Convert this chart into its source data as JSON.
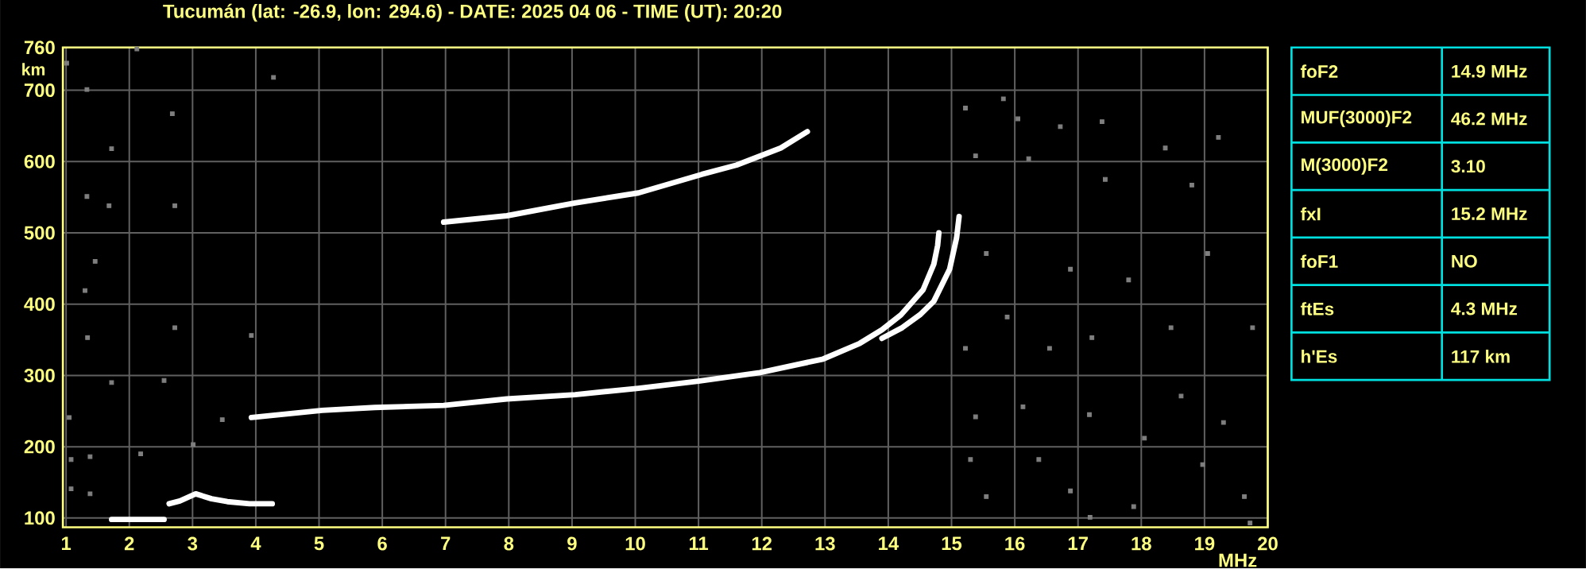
{
  "chart_data": [
    {
      "type": "line",
      "title": "Tucumán (lat: -26.9, lon: 294.6) - DATE: 2025 04 06 - TIME (UT): 20:20",
      "xlabel": "MHz",
      "ylabel": "km",
      "xlim": [
        0.95,
        20
      ],
      "ylim": [
        87,
        760
      ],
      "xticks": [
        1,
        2,
        3,
        4,
        5,
        6,
        7,
        8,
        9,
        10,
        11,
        12,
        13,
        14,
        15,
        16,
        17,
        18,
        19,
        20
      ],
      "yticks": [
        100,
        200,
        300,
        400,
        500,
        600,
        700,
        760
      ],
      "grid": true,
      "series": [
        {
          "color": "#ffffff",
          "x": [
            1.72,
            2.55
          ],
          "values": [
            98,
            98
          ]
        },
        {
          "color": "#ffffff",
          "x": [
            2.63,
            2.8,
            3.05,
            3.3,
            3.55,
            3.9,
            4.26
          ],
          "values": [
            120,
            124,
            134,
            127,
            123,
            120,
            120
          ]
        },
        {
          "color": "#ffffff",
          "x": [
            3.93,
            5.05,
            5.88,
            6.97,
            7.97,
            9.05,
            10.05,
            11.0,
            11.97,
            12.97,
            13.55,
            13.9,
            14.2,
            14.55,
            14.72,
            14.78,
            14.8
          ],
          "values": [
            241,
            251,
            255,
            258,
            267,
            273,
            282,
            292,
            304,
            323,
            345,
            364,
            385,
            420,
            456,
            482,
            500
          ]
        },
        {
          "color": "#ffffff",
          "x": [
            13.9,
            14.22,
            14.5,
            14.72,
            14.97,
            15.08,
            15.12
          ],
          "values": [
            352,
            367,
            385,
            404,
            449,
            493,
            523
          ]
        },
        {
          "color": "#ffffff",
          "x": [
            6.97,
            7.97,
            9.05,
            10.05,
            11.05,
            11.6,
            12.3,
            12.72
          ],
          "values": [
            515,
            524,
            542,
            556,
            582,
            595,
            619,
            642
          ]
        },
        {
          "type": "scatter",
          "marker": "square",
          "color": "#7f7f7f",
          "x": [
            15.22,
            16.05,
            16.72,
            17.38,
            18.38,
            19.22,
            15.38,
            16.22,
            17.43,
            18.8,
            15.55,
            16.88,
            17.8,
            19.05,
            15.88,
            17.22,
            18.47,
            19.76,
            15.22,
            16.55,
            15.38,
            16.13,
            17.18,
            18.63,
            19.3,
            15.3,
            16.38,
            18.05,
            18.97,
            15.55,
            16.88,
            17.88,
            19.63,
            19.72,
            17.19,
            15.82,
            1.01,
            1.33,
            2.12,
            2.68,
            1.72,
            1.33,
            1.68,
            2.72,
            4.28,
            1.46,
            1.3,
            1.34,
            2.72,
            2.55,
            1.72,
            1.05,
            1.08,
            2.18,
            1.38,
            3.93,
            3.47,
            3.01,
            1.08,
            1.38
          ],
          "values": [
            675,
            660,
            649,
            656,
            619,
            634,
            608,
            604,
            575,
            567,
            471,
            449,
            434,
            471,
            382,
            353,
            367,
            367,
            338,
            338,
            242,
            256,
            245,
            271,
            234,
            182,
            182,
            212,
            175,
            130,
            138,
            116,
            130,
            93,
            101,
            688,
            738,
            701,
            758,
            667,
            618,
            551,
            538,
            538,
            718,
            460,
            419,
            353,
            367,
            293,
            290,
            241,
            182,
            190,
            186,
            356,
            238,
            203,
            141,
            134
          ]
        }
      ]
    },
    {
      "type": "other",
      "categories": [
        "foF2",
        "MUF(3000)F2",
        "M(3000)F2",
        "fxI",
        "foF1",
        "ftEs",
        "h'Es"
      ],
      "value_labels": [
        "14.9 MHz",
        "46.2 MHz",
        "3.10",
        "15.2 MHz",
        "NO",
        "4.3 MHz",
        "117 km"
      ]
    }
  ]
}
